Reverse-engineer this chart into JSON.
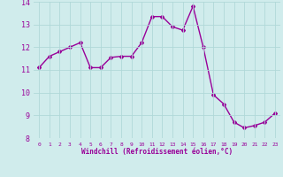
{
  "x": [
    0,
    1,
    2,
    3,
    4,
    5,
    6,
    7,
    8,
    9,
    10,
    11,
    12,
    13,
    14,
    15,
    16,
    17,
    18,
    19,
    20,
    21,
    22,
    23
  ],
  "y": [
    11.1,
    11.6,
    11.8,
    12.0,
    12.2,
    11.1,
    11.1,
    11.55,
    11.6,
    11.6,
    12.2,
    13.35,
    13.35,
    12.9,
    12.75,
    13.8,
    12.0,
    9.9,
    9.5,
    8.7,
    8.45,
    8.55,
    8.7,
    9.1
  ],
  "line_color": "#990099",
  "marker": "D",
  "marker_size": 2.0,
  "bg_color": "#d0ecec",
  "grid_color": "#b0d8d8",
  "xlabel": "Windchill (Refroidissement éolien,°C)",
  "xlabel_color": "#990099",
  "tick_color": "#990099",
  "ylim": [
    8,
    14
  ],
  "xlim": [
    -0.5,
    23.5
  ],
  "yticks": [
    8,
    9,
    10,
    11,
    12,
    13,
    14
  ],
  "xticks": [
    0,
    1,
    2,
    3,
    4,
    5,
    6,
    7,
    8,
    9,
    10,
    11,
    12,
    13,
    14,
    15,
    16,
    17,
    18,
    19,
    20,
    21,
    22,
    23
  ],
  "line_width": 1.0,
  "title": ""
}
